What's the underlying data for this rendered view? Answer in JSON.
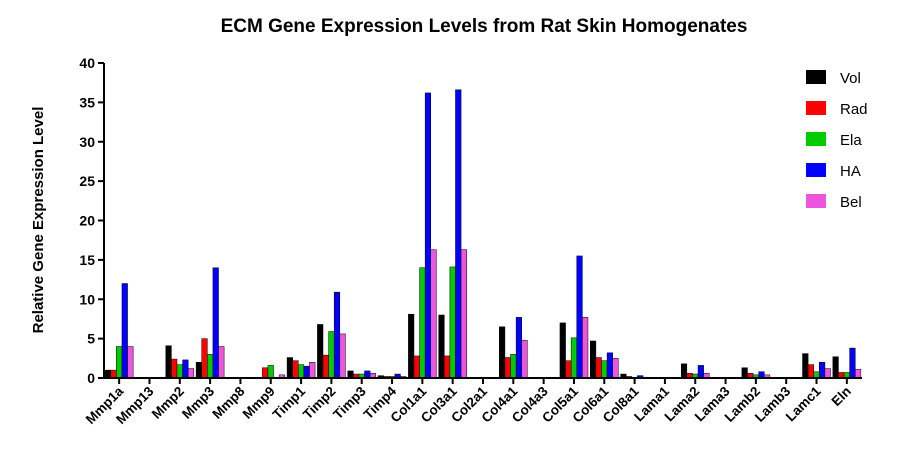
{
  "chart_data": {
    "type": "bar",
    "title": "ECM Gene Expression Levels from Rat Skin Homogenates",
    "xlabel": "",
    "ylabel": "Relative Gene Expression Level",
    "ylim": [
      0,
      40
    ],
    "yticks": [
      0,
      5,
      10,
      15,
      20,
      25,
      30,
      35,
      40
    ],
    "grid": false,
    "legend_position": "top-right",
    "categories": [
      "Mmp1a",
      "Mmp13",
      "Mmp2",
      "Mmp3",
      "Mmp8",
      "Mmp9",
      "Timp1",
      "Timp2",
      "Timp3",
      "Timp4",
      "Col1a1",
      "Col3a1",
      "Col2a1",
      "Col4a1",
      "Col4a3",
      "Col5a1",
      "Col6a1",
      "Col8a1",
      "Lama1",
      "Lama2",
      "Lama3",
      "Lamb2",
      "Lamb3",
      "Lamc1",
      "Eln"
    ],
    "series": [
      {
        "name": "Vol",
        "color": "#000000",
        "values": [
          1.0,
          0,
          4.1,
          2.0,
          0,
          0,
          2.6,
          6.8,
          0.9,
          0.3,
          8.1,
          8.0,
          0,
          6.5,
          0,
          7.0,
          4.7,
          0.5,
          0,
          1.8,
          0,
          1.3,
          0,
          3.1,
          2.7
        ]
      },
      {
        "name": "Rad",
        "color": "#ff0000",
        "values": [
          1.0,
          0,
          2.4,
          5.0,
          0,
          1.3,
          2.2,
          2.9,
          0.5,
          0.2,
          2.8,
          2.8,
          0,
          2.6,
          0,
          2.2,
          2.6,
          0.2,
          0,
          0.6,
          0,
          0.6,
          0,
          1.7,
          0.7
        ]
      },
      {
        "name": "Ela",
        "color": "#00cc00",
        "values": [
          4.0,
          0,
          1.7,
          3.0,
          0,
          1.6,
          1.7,
          5.9,
          0.5,
          0.2,
          14.0,
          14.1,
          0,
          3.0,
          0,
          5.1,
          2.2,
          0.1,
          0,
          0.5,
          0,
          0.4,
          0,
          0.8,
          0.7
        ]
      },
      {
        "name": "HA",
        "color": "#0000ff",
        "values": [
          12.0,
          0,
          2.3,
          14.0,
          0,
          0,
          1.5,
          10.9,
          0.9,
          0.5,
          36.2,
          36.6,
          0,
          7.7,
          0,
          15.5,
          3.2,
          0.3,
          0,
          1.6,
          0,
          0.8,
          0,
          2.0,
          3.8
        ]
      },
      {
        "name": "Bel",
        "color": "#ee55dd",
        "values": [
          4.0,
          0,
          1.2,
          4.0,
          0,
          0.4,
          2.0,
          5.6,
          0.6,
          0.2,
          16.3,
          16.3,
          0,
          4.8,
          0,
          7.7,
          2.5,
          0.1,
          0,
          0.6,
          0,
          0.4,
          0,
          1.2,
          1.1
        ]
      }
    ]
  }
}
